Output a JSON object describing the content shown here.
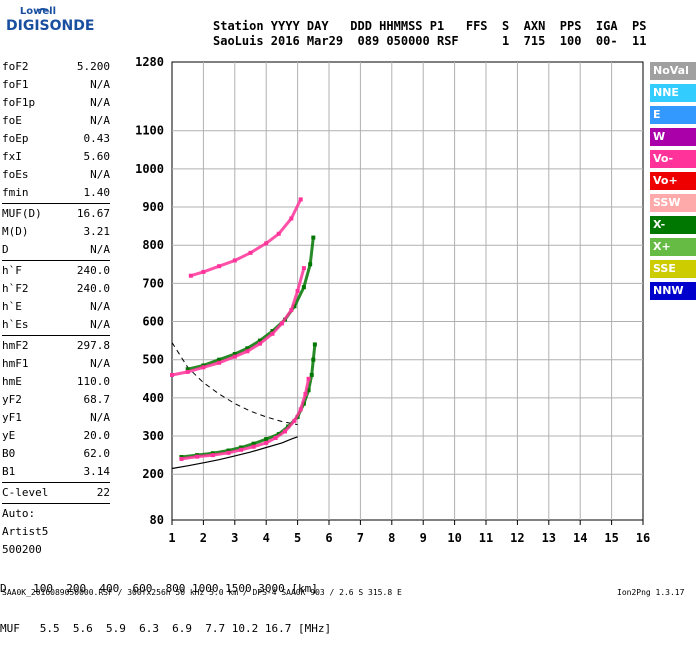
{
  "logo": {
    "line1": "Lowell",
    "line2": "DIGISONDE"
  },
  "header": {
    "line1": "Station YYYY DAY   DDD HHMMSS P1   FFS  S  AXN  PPS  IGA  PS",
    "line2": "SaoLuis 2016 Mar29  089 050000 RSF      1  715  100  00-  11"
  },
  "params": [
    {
      "k": "foF2",
      "v": "5.200"
    },
    {
      "k": "foF1",
      "v": "N/A"
    },
    {
      "k": "foF1p",
      "v": "N/A"
    },
    {
      "k": "foE",
      "v": "N/A"
    },
    {
      "k": "foEp",
      "v": "0.43"
    },
    {
      "k": "fxI",
      "v": "5.60"
    },
    {
      "k": "foEs",
      "v": "N/A"
    },
    {
      "k": "fmin",
      "v": "1.40"
    },
    {
      "k": "MUF(D)",
      "v": "16.67",
      "sep_before": true
    },
    {
      "k": "M(D)",
      "v": "3.21"
    },
    {
      "k": "D",
      "v": "N/A"
    },
    {
      "k": "h`F",
      "v": "240.0",
      "sep_before": true
    },
    {
      "k": "h`F2",
      "v": "240.0"
    },
    {
      "k": "h`E",
      "v": "N/A"
    },
    {
      "k": "h`Es",
      "v": "N/A"
    },
    {
      "k": "hmF2",
      "v": "297.8",
      "sep_before": true
    },
    {
      "k": "hmF1",
      "v": "N/A"
    },
    {
      "k": "hmE",
      "v": "110.0"
    },
    {
      "k": "yF2",
      "v": "68.7"
    },
    {
      "k": "yF1",
      "v": "N/A"
    },
    {
      "k": "yE",
      "v": "20.0"
    },
    {
      "k": "B0",
      "v": "62.0"
    },
    {
      "k": "B1",
      "v": "3.14"
    },
    {
      "k": "C-level",
      "v": "22",
      "sep_before": true
    },
    {
      "k": "Auto:",
      "v": "",
      "sep_before": true
    },
    {
      "k": "Artist5",
      "v": ""
    },
    {
      "k": "500200",
      "v": ""
    }
  ],
  "legend": [
    {
      "label": "NoVal",
      "color": "#a0a0a0"
    },
    {
      "label": "NNE",
      "color": "#33ccff"
    },
    {
      "label": "E",
      "color": "#3399ff"
    },
    {
      "label": "W",
      "color": "#aa00aa"
    },
    {
      "label": "Vo-",
      "color": "#ff3399"
    },
    {
      "label": "Vo+",
      "color": "#ee0000"
    },
    {
      "label": "SSW",
      "color": "#ffaaaa"
    },
    {
      "label": "X-",
      "color": "#007700"
    },
    {
      "label": "X+",
      "color": "#66bb44"
    },
    {
      "label": "SSE",
      "color": "#cccc00"
    },
    {
      "label": "NNW",
      "color": "#0000cc"
    }
  ],
  "bottom": {
    "d_row": "D    100  200  400  600  800 1000 1500 3000 [km]",
    "muf_row": "MUF   5.5  5.6  5.9  6.3  6.9  7.7 10.2 16.7 [MHz]"
  },
  "footer": {
    "left": "SAA0K_2016089050000.RSF / 300fx256h 50 kHz 5.0 km / DPS-4 SAA0K 903 / 2.6 S 315.8 E",
    "right": "Ion2Png 1.3.17"
  },
  "chart_data": {
    "type": "scatter",
    "title": "",
    "xlabel": "",
    "ylabel": "",
    "x_ticks": [
      1,
      2,
      3,
      4,
      5,
      6,
      7,
      8,
      9,
      10,
      11,
      12,
      13,
      14,
      15,
      16
    ],
    "y_ticks": [
      80,
      200,
      300,
      400,
      500,
      600,
      700,
      800,
      900,
      1000,
      1100,
      1280
    ],
    "xlim": [
      1,
      16
    ],
    "ylim": [
      80,
      1280
    ],
    "grid": true,
    "series": [
      {
        "name": "X-",
        "color": "#007700",
        "x": [
          1.3,
          1.8,
          2.3,
          2.8,
          3.2,
          3.6,
          4.0,
          4.4,
          4.7,
          5.0,
          5.2,
          5.35,
          5.45,
          5.5,
          5.55
        ],
        "y": [
          245,
          250,
          255,
          262,
          270,
          280,
          292,
          305,
          325,
          350,
          385,
          420,
          460,
          500,
          540
        ]
      },
      {
        "name": "Vo-",
        "color": "#ff3399",
        "x": [
          1.3,
          1.8,
          2.3,
          2.8,
          3.2,
          3.6,
          4.0,
          4.3,
          4.6,
          4.9,
          5.1,
          5.25,
          5.35
        ],
        "y": [
          240,
          246,
          250,
          256,
          264,
          272,
          282,
          295,
          312,
          340,
          370,
          410,
          450
        ]
      },
      {
        "name": "X- F2 echo",
        "color": "#007700",
        "x": [
          1.5,
          2.0,
          2.5,
          3.0,
          3.4,
          3.8,
          4.2,
          4.6,
          4.9,
          5.2,
          5.4,
          5.5
        ],
        "y": [
          475,
          485,
          500,
          515,
          530,
          550,
          575,
          605,
          640,
          690,
          750,
          820
        ]
      },
      {
        "name": "Vo- F2 echo",
        "color": "#ff3399",
        "x": [
          1.0,
          1.5,
          2.0,
          2.5,
          3.0,
          3.4,
          3.8,
          4.2,
          4.5,
          4.8,
          5.0,
          5.2
        ],
        "y": [
          460,
          468,
          480,
          492,
          508,
          522,
          542,
          568,
          595,
          630,
          680,
          740
        ]
      },
      {
        "name": "multihop",
        "color": "#ff3399",
        "x": [
          1.6,
          2.0,
          2.5,
          3.0,
          3.5,
          4.0,
          4.4,
          4.8,
          5.1
        ],
        "y": [
          720,
          730,
          745,
          760,
          780,
          805,
          830,
          870,
          920
        ]
      }
    ],
    "profile_curve": {
      "x": [
        1.0,
        1.5,
        2.0,
        2.5,
        3.0,
        3.5,
        4.0,
        4.5,
        4.8,
        5.0
      ],
      "y": [
        215,
        222,
        230,
        238,
        248,
        258,
        270,
        282,
        292,
        298
      ]
    },
    "muf_curve_dashed": {
      "x": [
        1.0,
        1.5,
        2.0,
        2.5,
        3.0,
        3.5,
        4.0,
        4.5,
        5.0
      ],
      "y": [
        545,
        480,
        440,
        410,
        385,
        365,
        350,
        338,
        330
      ]
    }
  }
}
